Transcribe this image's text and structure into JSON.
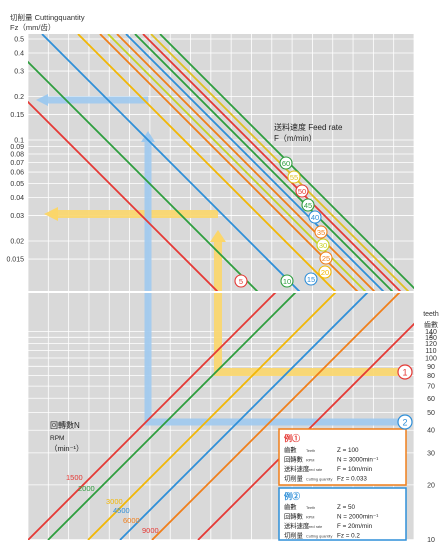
{
  "chart_data": {
    "type": "nomogram",
    "title": "",
    "top_chart": {
      "ylabel_line1": "切削量 Cuttingquantity",
      "ylabel_line2": "Fz（mm/齿）",
      "y_axis": {
        "scale": "log",
        "range": [
          0.01,
          0.5
        ],
        "ticks": [
          {
            "v": 0.5,
            "label": "0.5"
          },
          {
            "v": 0.4,
            "label": "0.4"
          },
          {
            "v": 0.3,
            "label": "0.3"
          },
          {
            "v": 0.2,
            "label": "0.2"
          },
          {
            "v": 0.15,
            "label": "0.15"
          },
          {
            "v": 0.1,
            "label": "0.1"
          },
          {
            "v": 0.09,
            "label": "0.09"
          },
          {
            "v": 0.08,
            "label": "0.08"
          },
          {
            "v": 0.07,
            "label": "0.07"
          },
          {
            "v": 0.06,
            "label": "0.06"
          },
          {
            "v": 0.05,
            "label": "0.05"
          },
          {
            "v": 0.04,
            "label": "0.04"
          },
          {
            "v": 0.03,
            "label": "0.03"
          },
          {
            "v": 0.02,
            "label": "0.02"
          },
          {
            "v": 0.015,
            "label": "0.015"
          }
        ]
      },
      "feed_rate_label_line1": "送料速度 Feed rate",
      "feed_rate_label_line2": "F（m/min）",
      "feed_rate_lines": [
        {
          "value": "5",
          "color": "#e53935"
        },
        {
          "value": "10",
          "color": "#2e9e3e"
        },
        {
          "value": "15",
          "color": "#2f8fd8"
        },
        {
          "value": "20",
          "color": "#f2b705"
        },
        {
          "value": "25",
          "color": "#f07f1a"
        },
        {
          "value": "30",
          "color": "#c6d21f"
        },
        {
          "value": "35",
          "color": "#f07f1a"
        },
        {
          "value": "40",
          "color": "#2f8fd8"
        },
        {
          "value": "45",
          "color": "#2e9e3e"
        },
        {
          "value": "50",
          "color": "#e53935"
        },
        {
          "value": "55",
          "color": "#e0c020"
        },
        {
          "value": "60",
          "color": "#2e9e3e"
        }
      ]
    },
    "bottom_chart": {
      "rpm_label_line1": "回轉數N",
      "rpm_label_line2": "RPM",
      "rpm_label_line3": "（min⁻¹）",
      "teeth_label_line1": "teeth",
      "teeth_label_line2": "齒數",
      "teeth_label_line3": "Z",
      "teeth_axis": {
        "scale": "log",
        "range": [
          10,
          140
        ],
        "ticks": [
          {
            "v": 140,
            "label": "140"
          },
          {
            "v": 130,
            "label": "130"
          },
          {
            "v": 120,
            "label": "120"
          },
          {
            "v": 110,
            "label": "110"
          },
          {
            "v": 100,
            "label": "100"
          },
          {
            "v": 90,
            "label": "90"
          },
          {
            "v": 80,
            "label": "80"
          },
          {
            "v": 70,
            "label": "70"
          },
          {
            "v": 60,
            "label": "60"
          },
          {
            "v": 50,
            "label": "50"
          },
          {
            "v": 40,
            "label": "40"
          },
          {
            "v": 30,
            "label": "30"
          },
          {
            "v": 20,
            "label": "20"
          },
          {
            "v": 10,
            "label": "10"
          }
        ]
      },
      "rpm_lines": [
        {
          "value": "1500",
          "color": "#e53935"
        },
        {
          "value": "2000",
          "color": "#2e9e3e"
        },
        {
          "value": "3000",
          "color": "#f2b705"
        },
        {
          "value": "4500",
          "color": "#2f8fd8"
        },
        {
          "value": "6000",
          "color": "#f07f1a"
        },
        {
          "value": "9000",
          "color": "#e53935"
        }
      ]
    },
    "examples": [
      {
        "marker": "1",
        "title": "例①",
        "border_color": "#f07f1a",
        "rows": [
          {
            "cn": "齒數",
            "en": "Teeth",
            "value": "Z = 100"
          },
          {
            "cn": "回轉數",
            "en": "RPM",
            "value": "N = 3000min⁻¹"
          },
          {
            "cn": "送料速度",
            "en": "Feed rate",
            "value": "F = 10m/min"
          },
          {
            "cn": "切削量",
            "en": "Cutting quantity",
            "value": "Fz = 0.033"
          }
        ]
      },
      {
        "marker": "2",
        "title": "例②",
        "border_color": "#2f8fd8",
        "rows": [
          {
            "cn": "齒數",
            "en": "Teeth",
            "value": "Z = 50"
          },
          {
            "cn": "回轉數",
            "en": "RPM",
            "value": "N = 2000min⁻¹"
          },
          {
            "cn": "送料速度",
            "en": "Feed rate",
            "value": "F = 20m/min"
          },
          {
            "cn": "切削量",
            "en": "Cutting quantity",
            "value": "Fz = 0.2"
          }
        ]
      }
    ],
    "colors": {
      "background": "#d9d9d9",
      "grid": "#ffffff",
      "example1_path": "#fbd66a",
      "example2_path": "#9ec9ee"
    }
  }
}
